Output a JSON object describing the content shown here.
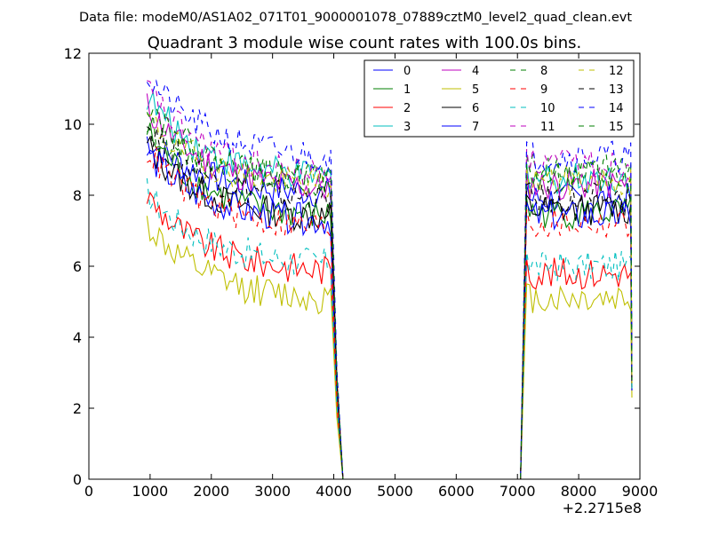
{
  "header": {
    "data_file": "Data file: modeM0/AS1A02_071T01_9000001078_07889cztM0_level2_quad_clean.evt"
  },
  "chart_data": {
    "type": "line",
    "title": "Quadrant 3 module wise count rates with 100.0s bins.",
    "xlabel": "",
    "ylabel": "",
    "x_offset_label": "+2.2715e8",
    "xlim": [
      0,
      9000
    ],
    "ylim": [
      0,
      12
    ],
    "xticks": [
      0,
      1000,
      2000,
      3000,
      4000,
      5000,
      6000,
      7000,
      8000,
      9000
    ],
    "yticks": [
      0,
      2,
      4,
      6,
      8,
      10,
      12
    ],
    "grid": false,
    "legend": {
      "placement": "top-right",
      "columns": 4
    },
    "segments": {
      "first": {
        "x_start": 950,
        "x_end": 3950
      },
      "drop": {
        "x": [
          4050,
          4150
        ]
      },
      "gap": {
        "x_start": 4150,
        "x_end": 7050
      },
      "second": {
        "x_start": 7150,
        "x_end": 8850
      }
    },
    "series": [
      {
        "name": "0",
        "color": "#0000ff",
        "dash": "solid",
        "start": 9.6,
        "level1": 8.0,
        "level2": 7.9,
        "end": 2.5
      },
      {
        "name": "1",
        "color": "#007f00",
        "dash": "solid",
        "start": 9.8,
        "level1": 7.3,
        "level2": 7.5,
        "end": 2.8
      },
      {
        "name": "2",
        "color": "#ff0000",
        "dash": "solid",
        "start": 8.0,
        "level1": 5.8,
        "level2": 5.8,
        "end": 2.5
      },
      {
        "name": "3",
        "color": "#00bfbf",
        "dash": "solid",
        "start": 10.8,
        "level1": 8.4,
        "level2": 8.5,
        "end": 2.6
      },
      {
        "name": "4",
        "color": "#bf00bf",
        "dash": "solid",
        "start": 10.5,
        "level1": 8.1,
        "level2": 8.3,
        "end": 2.7
      },
      {
        "name": "5",
        "color": "#bfbf00",
        "dash": "solid",
        "start": 7.2,
        "level1": 5.0,
        "level2": 5.1,
        "end": 2.3
      },
      {
        "name": "6",
        "color": "#000000",
        "dash": "solid",
        "start": 9.4,
        "level1": 7.3,
        "level2": 7.6,
        "end": 2.6
      },
      {
        "name": "7",
        "color": "#0000ff",
        "dash": "solid",
        "start": 9.2,
        "level1": 7.2,
        "level2": 7.4,
        "end": 2.5
      },
      {
        "name": "8",
        "color": "#007f00",
        "dash": "dashed",
        "start": 10.0,
        "level1": 8.4,
        "level2": 8.7,
        "end": 2.9
      },
      {
        "name": "9",
        "color": "#ff0000",
        "dash": "dashed",
        "start": 9.3,
        "level1": 7.0,
        "level2": 7.2,
        "end": 2.6
      },
      {
        "name": "10",
        "color": "#00bfbf",
        "dash": "dashed",
        "start": 8.1,
        "level1": 6.0,
        "level2": 6.0,
        "end": 2.5
      },
      {
        "name": "11",
        "color": "#bf00bf",
        "dash": "dashed",
        "start": 11.0,
        "level1": 8.5,
        "level2": 8.9,
        "end": 2.8
      },
      {
        "name": "12",
        "color": "#bfbf00",
        "dash": "dashed",
        "start": 10.2,
        "level1": 8.2,
        "level2": 8.4,
        "end": 2.7
      },
      {
        "name": "13",
        "color": "#000000",
        "dash": "dashed",
        "start": 10.0,
        "level1": 7.8,
        "level2": 7.9,
        "end": 2.7
      },
      {
        "name": "14",
        "color": "#0000ff",
        "dash": "dashed",
        "start": 11.4,
        "level1": 9.0,
        "level2": 9.1,
        "end": 3.0
      },
      {
        "name": "15",
        "color": "#007f00",
        "dash": "dashed",
        "start": 10.7,
        "level1": 8.3,
        "level2": 8.5,
        "end": 2.8
      }
    ]
  }
}
